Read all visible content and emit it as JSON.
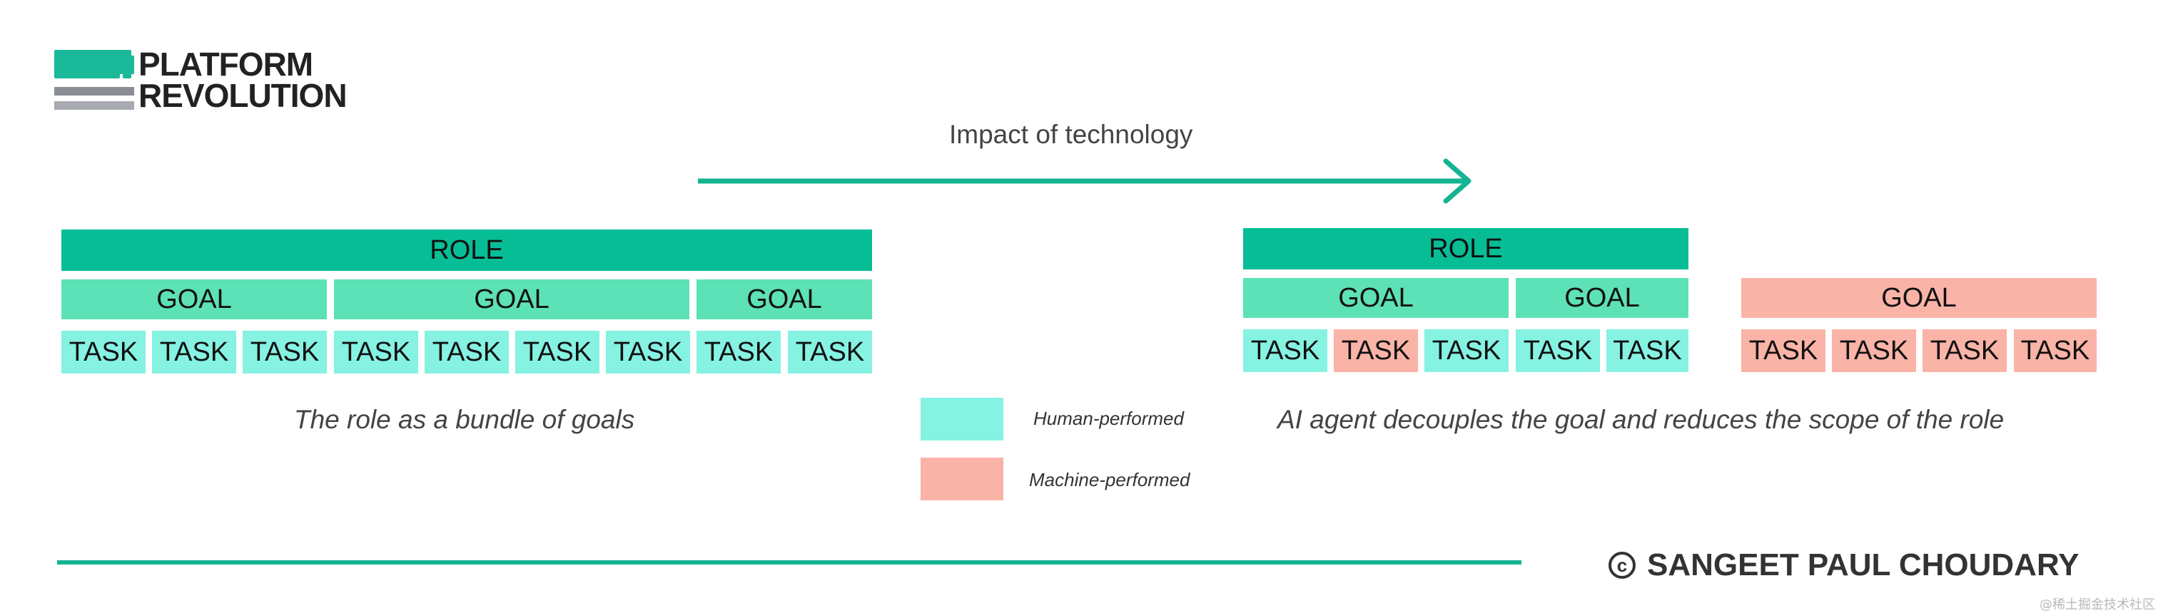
{
  "logo": {
    "line1": "PLATFORM",
    "line2": "REVOLUTION"
  },
  "colors": {
    "teal_dark": "#06bd96",
    "teal_mid": "#5de1b6",
    "human": "#85f2e2",
    "machine": "#fab3a7",
    "line": "#14b391"
  },
  "impact": {
    "label": "Impact of technology"
  },
  "left": {
    "role": "ROLE",
    "goals": [
      "GOAL",
      "GOAL",
      "GOAL"
    ],
    "tasks": [
      "TASK",
      "TASK",
      "TASK",
      "TASK",
      "TASK",
      "TASK",
      "TASK",
      "TASK",
      "TASK"
    ],
    "caption": "The role as a bundle of goals"
  },
  "right": {
    "role": "ROLE",
    "goals": [
      "GOAL",
      "GOAL"
    ],
    "tasks": [
      "TASK",
      "TASK",
      "TASK",
      "TASK",
      "TASK"
    ],
    "machine_goal": "GOAL",
    "machine_tasks": [
      "TASK",
      "TASK",
      "TASK",
      "TASK"
    ],
    "caption": "AI agent decouples the goal and reduces the scope of the role"
  },
  "legend": {
    "human": "Human-performed",
    "machine": "Machine-performed"
  },
  "footer": {
    "copyright_symbol": "c",
    "author": "SANGEET PAUL CHOUDARY"
  },
  "watermark": "@稀土掘金技术社区"
}
